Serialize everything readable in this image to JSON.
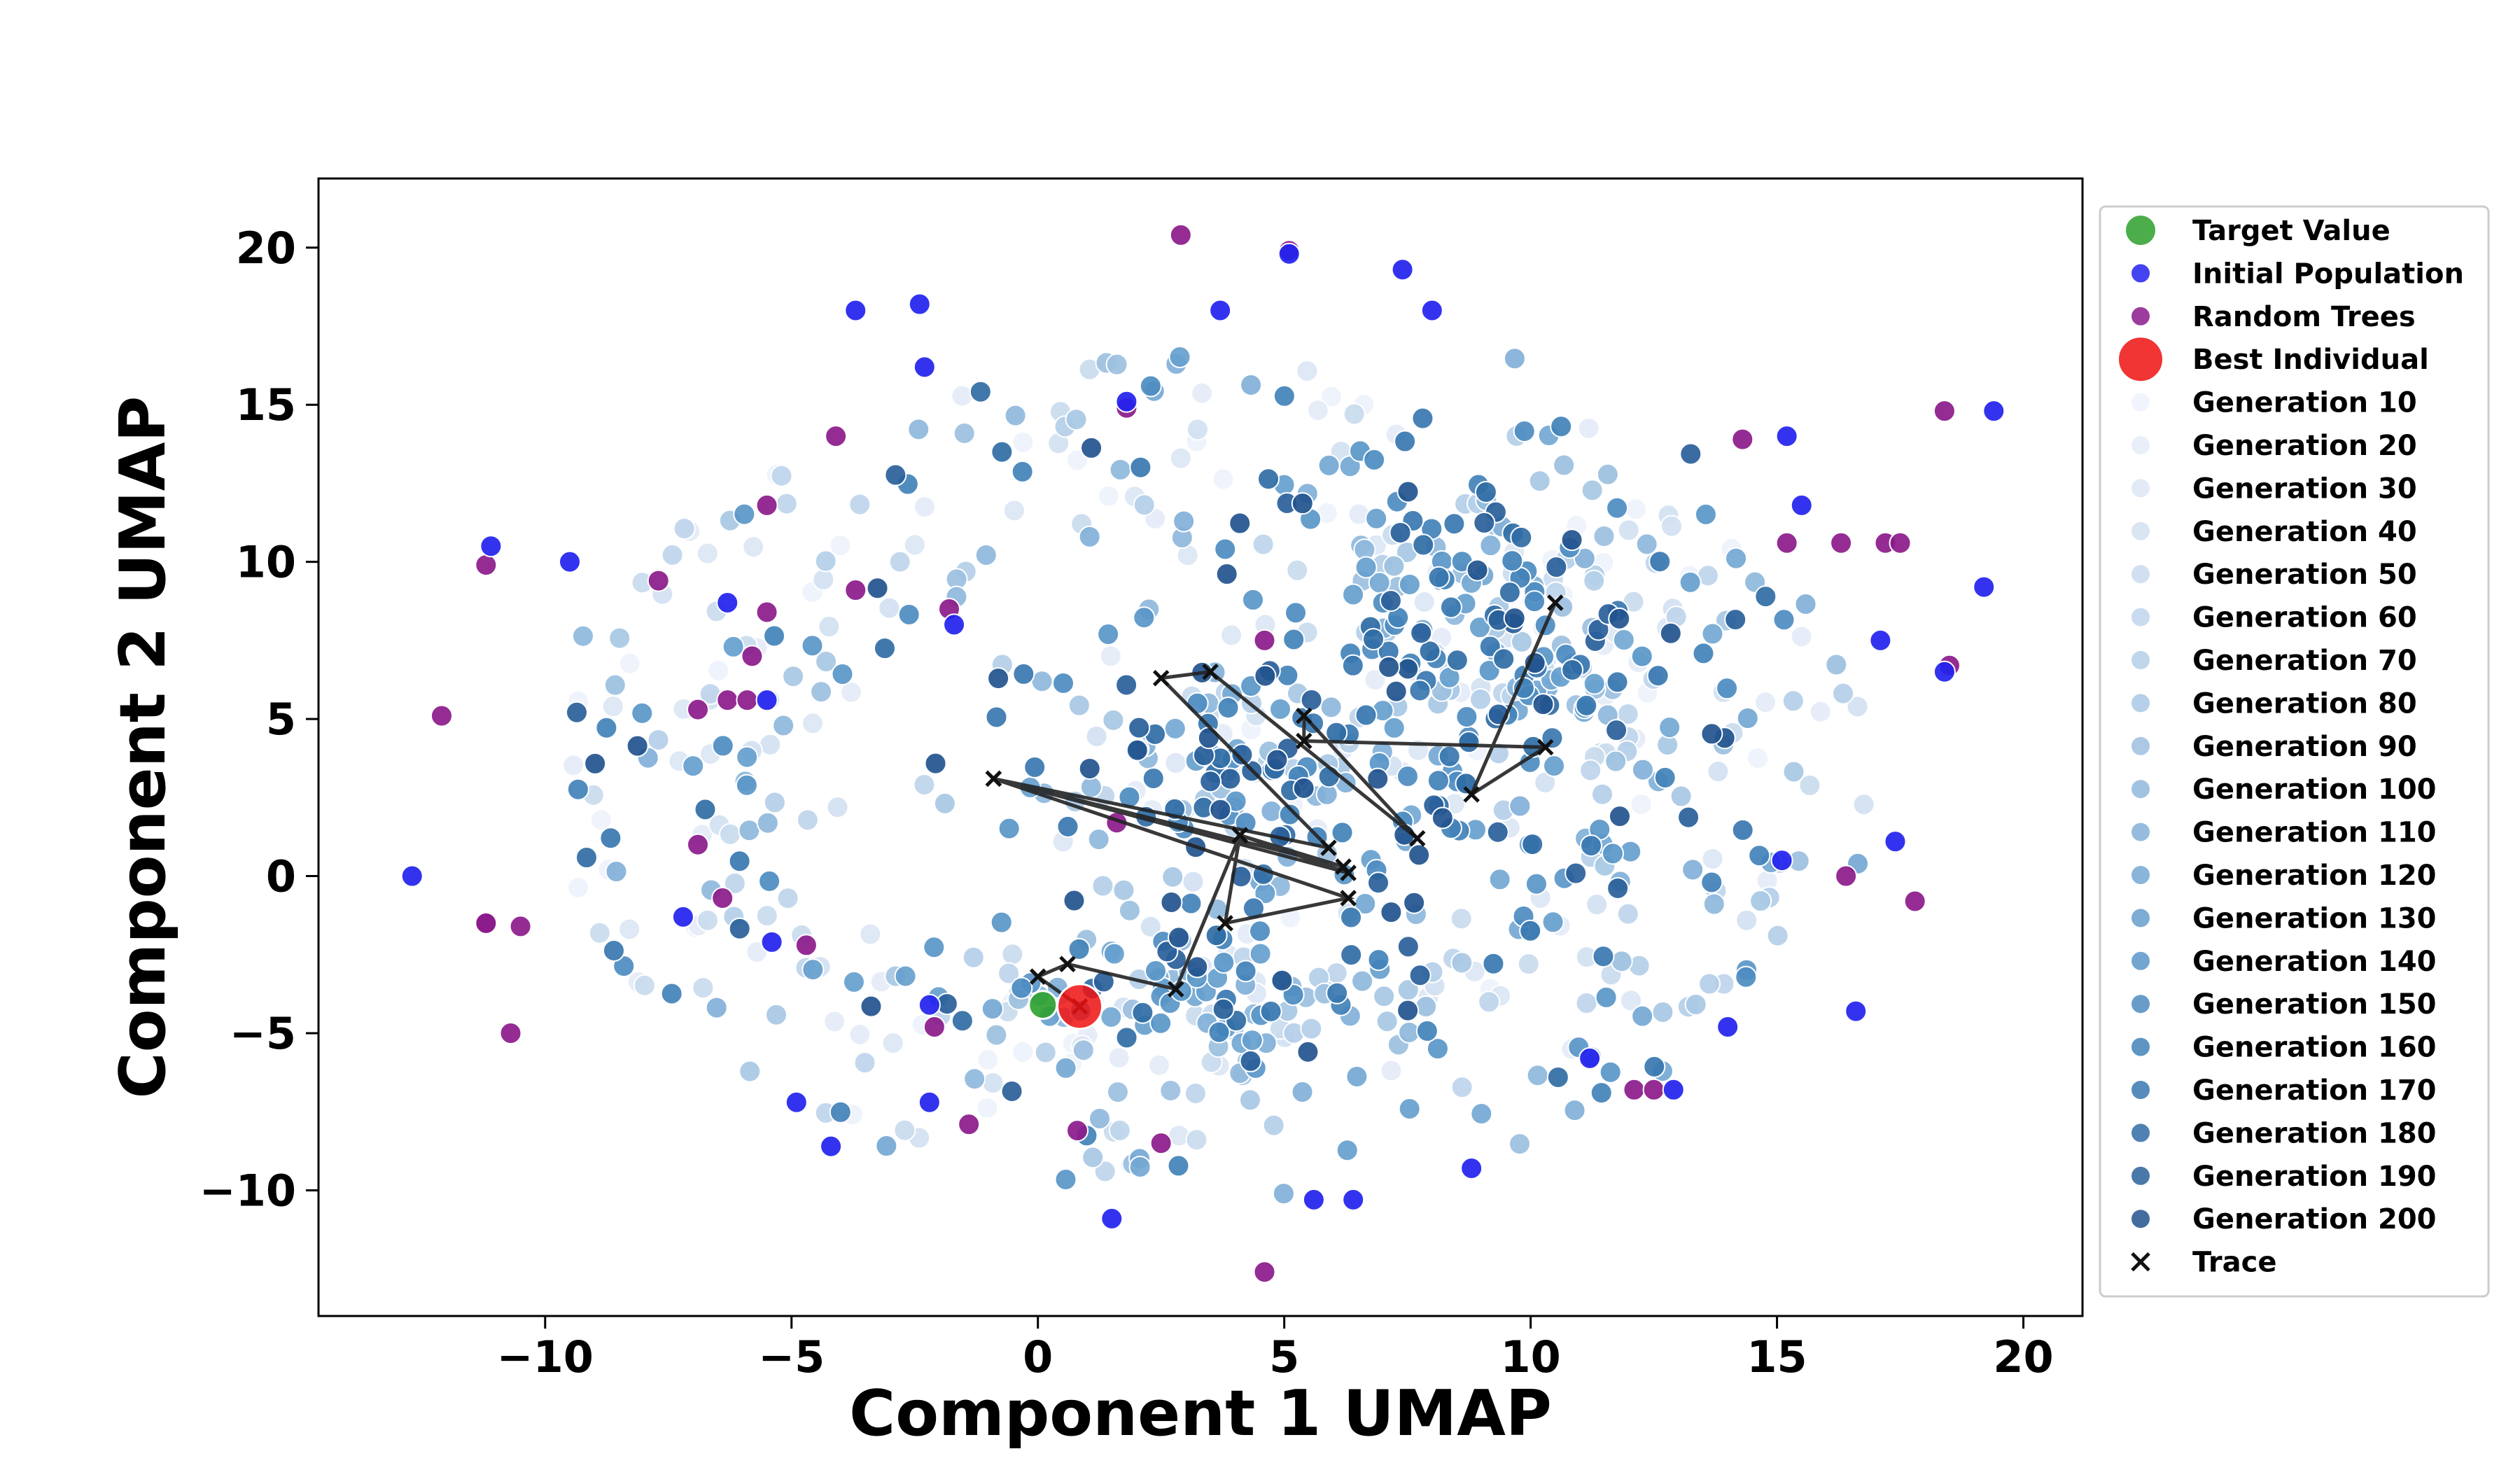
{
  "chart_data": {
    "type": "scatter",
    "xlabel": "Component 1 UMAP",
    "ylabel": "Component 2 UMAP",
    "xlim": [
      -14.6,
      21.2
    ],
    "ylim": [
      -14.0,
      22.2
    ],
    "xticks": [
      -10,
      -5,
      0,
      5,
      10,
      15,
      20
    ],
    "yticks": [
      -10,
      -5,
      0,
      5,
      10,
      15,
      20
    ],
    "xtick_labels": [
      "−10",
      "−5",
      "0",
      "5",
      "10",
      "15",
      "20"
    ],
    "ytick_labels": [
      "−10",
      "−5",
      "0",
      "5",
      "10",
      "15",
      "20"
    ],
    "legend_position": "outside right, top",
    "target_value": {
      "label": "Target Value",
      "color": "#2ca02c",
      "points": [
        [
          0.1,
          -4.1
        ]
      ]
    },
    "initial_population": {
      "label": "Initial Population",
      "color": "#2222ee",
      "points": [
        [
          -12.7,
          0
        ],
        [
          -11.1,
          10.5
        ],
        [
          -9.5,
          10
        ],
        [
          -7.2,
          -1.3
        ],
        [
          -6.3,
          8.7
        ],
        [
          -5.5,
          5.6
        ],
        [
          -5.4,
          -2.1
        ],
        [
          -4.9,
          -7.2
        ],
        [
          -4.2,
          -8.6
        ],
        [
          -2.4,
          18.2
        ],
        [
          -2.3,
          16.2
        ],
        [
          -2.2,
          -4.1
        ],
        [
          -1.7,
          8.0
        ],
        [
          -2.2,
          -7.2
        ],
        [
          1.5,
          -10.9
        ],
        [
          1.8,
          15.1
        ],
        [
          3.7,
          18.0
        ],
        [
          5.1,
          19.8
        ],
        [
          7.4,
          19.3
        ],
        [
          8.0,
          18.0
        ],
        [
          8.8,
          -9.3
        ],
        [
          6.4,
          -10.3
        ],
        [
          5.6,
          -10.3
        ],
        [
          11.2,
          -5.8
        ],
        [
          15.2,
          14.0
        ],
        [
          15.5,
          11.8
        ],
        [
          15.1,
          0.5
        ],
        [
          16.6,
          -4.3
        ],
        [
          17.4,
          1.1
        ],
        [
          17.1,
          7.5
        ],
        [
          18.4,
          6.5
        ],
        [
          19.2,
          9.2
        ],
        [
          19.4,
          14.8
        ],
        [
          14.0,
          -4.8
        ],
        [
          12.9,
          -6.8
        ],
        [
          -3.7,
          18.0
        ]
      ]
    },
    "random_trees": {
      "label": "Random Trees",
      "color": "#8b1a8b",
      "points": [
        [
          -12.1,
          5.1
        ],
        [
          -11.2,
          9.9
        ],
        [
          -11.2,
          -1.5
        ],
        [
          -10.5,
          -1.6
        ],
        [
          -10.7,
          -5.0
        ],
        [
          -7.7,
          9.4
        ],
        [
          -6.9,
          5.3
        ],
        [
          -6.3,
          5.6
        ],
        [
          -5.5,
          11.8
        ],
        [
          -5.5,
          8.4
        ],
        [
          -5.9,
          5.6
        ],
        [
          -6.9,
          1.0
        ],
        [
          -6.4,
          -0.7
        ],
        [
          -4.1,
          14.0
        ],
        [
          -3.7,
          9.1
        ],
        [
          -2.1,
          -4.8
        ],
        [
          -1.4,
          -7.9
        ],
        [
          1.6,
          1.7
        ],
        [
          1.8,
          14.9
        ],
        [
          2.9,
          20.4
        ],
        [
          2.5,
          -8.5
        ],
        [
          4.6,
          -12.6
        ],
        [
          4.6,
          7.5
        ],
        [
          5.1,
          19.9
        ],
        [
          0.8,
          -8.1
        ],
        [
          12.1,
          -6.8
        ],
        [
          12.5,
          -6.8
        ],
        [
          14.3,
          13.9
        ],
        [
          16.3,
          10.6
        ],
        [
          17.2,
          10.6
        ],
        [
          17.5,
          10.6
        ],
        [
          18.4,
          14.8
        ],
        [
          18.5,
          6.7
        ],
        [
          17.8,
          -0.8
        ],
        [
          16.4,
          0
        ],
        [
          15.2,
          10.6
        ],
        [
          -1.8,
          8.5
        ],
        [
          -4.7,
          -2.2
        ],
        [
          -11.2,
          -1.5
        ],
        [
          -5.8,
          7.0
        ]
      ]
    },
    "best_individual": {
      "label": "Best Individual",
      "color": "#ee1111",
      "points": [
        [
          0.85,
          -4.15
        ]
      ]
    },
    "generations": [
      {
        "label": "Generation 10",
        "color": "#eef2fb"
      },
      {
        "label": "Generation 20",
        "color": "#e5ecf7"
      },
      {
        "label": "Generation 30",
        "color": "#dce6f4"
      },
      {
        "label": "Generation 40",
        "color": "#d2e1f1"
      },
      {
        "label": "Generation 50",
        "color": "#c9dbee"
      },
      {
        "label": "Generation 60",
        "color": "#bfd5eb"
      },
      {
        "label": "Generation 70",
        "color": "#b4cfe8"
      },
      {
        "label": "Generation 80",
        "color": "#a8c8e4"
      },
      {
        "label": "Generation 90",
        "color": "#9cc0e0"
      },
      {
        "label": "Generation 100",
        "color": "#8fb8dc"
      },
      {
        "label": "Generation 110",
        "color": "#82b0d8"
      },
      {
        "label": "Generation 120",
        "color": "#74a8d3"
      },
      {
        "label": "Generation 130",
        "color": "#669fce"
      },
      {
        "label": "Generation 140",
        "color": "#5996c8"
      },
      {
        "label": "Generation 150",
        "color": "#4d8cc1"
      },
      {
        "label": "Generation 160",
        "color": "#4282b9"
      },
      {
        "label": "Generation 170",
        "color": "#3877b0"
      },
      {
        "label": "Generation 180",
        "color": "#306ca5"
      },
      {
        "label": "Generation 190",
        "color": "#29609a"
      },
      {
        "label": "Generation 200",
        "color": "#22548e"
      }
    ],
    "trace": {
      "label": "Trace",
      "color": "#222222",
      "points": [
        [
          10.5,
          8.7
        ],
        [
          8.8,
          2.6
        ],
        [
          10.3,
          4.1
        ],
        [
          5.4,
          4.3
        ],
        [
          5.4,
          5.1
        ],
        [
          7.7,
          1.2
        ],
        [
          3.5,
          6.5
        ],
        [
          2.5,
          6.3
        ],
        [
          5.9,
          0.9
        ],
        [
          -0.9,
          3.1
        ],
        [
          6.3,
          0.1
        ],
        [
          4.1,
          1.3
        ],
        [
          3.8,
          -1.5
        ],
        [
          6.3,
          -0.7
        ],
        [
          -0.9,
          3.1
        ],
        [
          6.2,
          0.3
        ],
        [
          4.1,
          1.3
        ],
        [
          2.8,
          -3.6
        ],
        [
          0.6,
          -2.8
        ],
        [
          0.0,
          -3.2
        ],
        [
          0.85,
          -4.15
        ]
      ]
    }
  }
}
